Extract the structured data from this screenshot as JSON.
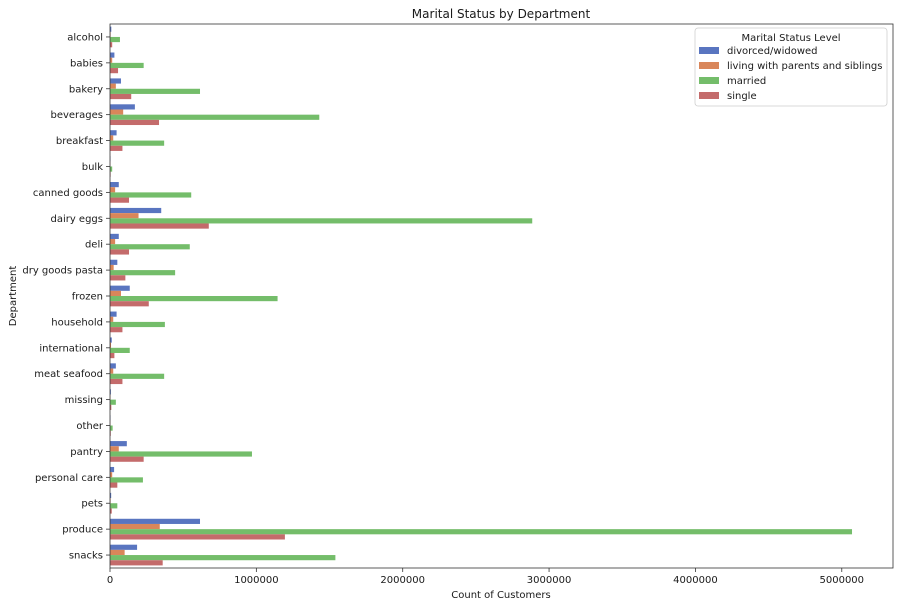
{
  "chart_data": {
    "type": "bar",
    "orientation": "horizontal",
    "title": "Marital Status by Department",
    "xlabel": "Count of Customers",
    "ylabel": "Department",
    "xlim": [
      0,
      5350000
    ],
    "xticks": [
      0,
      1000000,
      2000000,
      3000000,
      4000000,
      5000000
    ],
    "xtick_labels": [
      "0",
      "1000000",
      "2000000",
      "3000000",
      "4000000",
      "5000000"
    ],
    "grid": false,
    "legend": {
      "title": "Marital Status Level",
      "placement": "top-right"
    },
    "categories": [
      "alcohol",
      "babies",
      "bakery",
      "beverages",
      "breakfast",
      "bulk",
      "canned goods",
      "dairy eggs",
      "deli",
      "dry goods pasta",
      "frozen",
      "household",
      "international",
      "meat seafood",
      "missing",
      "other",
      "pantry",
      "personal care",
      "pets",
      "produce",
      "snacks"
    ],
    "series": [
      {
        "name": "divorced/widowed",
        "color": "#5975c0",
        "values": [
          9000,
          30000,
          75000,
          170000,
          45000,
          3000,
          60000,
          350000,
          60000,
          50000,
          135000,
          45000,
          12000,
          40000,
          6000,
          3000,
          115000,
          28000,
          8000,
          615000,
          185000
        ]
      },
      {
        "name": "living with parents and siblings",
        "color": "#d9865a",
        "values": [
          4000,
          15000,
          40000,
          90000,
          22000,
          1500,
          35000,
          195000,
          35000,
          25000,
          75000,
          22000,
          7000,
          22000,
          3000,
          2000,
          60000,
          15000,
          4000,
          340000,
          100000
        ]
      },
      {
        "name": "married",
        "color": "#74bd6a",
        "values": [
          68000,
          230000,
          615000,
          1430000,
          370000,
          15000,
          555000,
          2885000,
          545000,
          445000,
          1145000,
          375000,
          135000,
          370000,
          40000,
          18000,
          970000,
          225000,
          50000,
          5070000,
          1540000
        ]
      },
      {
        "name": "single",
        "color": "#c46b6b",
        "values": [
          15000,
          55000,
          145000,
          335000,
          85000,
          4000,
          130000,
          675000,
          130000,
          105000,
          265000,
          85000,
          30000,
          85000,
          9000,
          5000,
          230000,
          50000,
          12000,
          1195000,
          360000
        ]
      }
    ]
  }
}
